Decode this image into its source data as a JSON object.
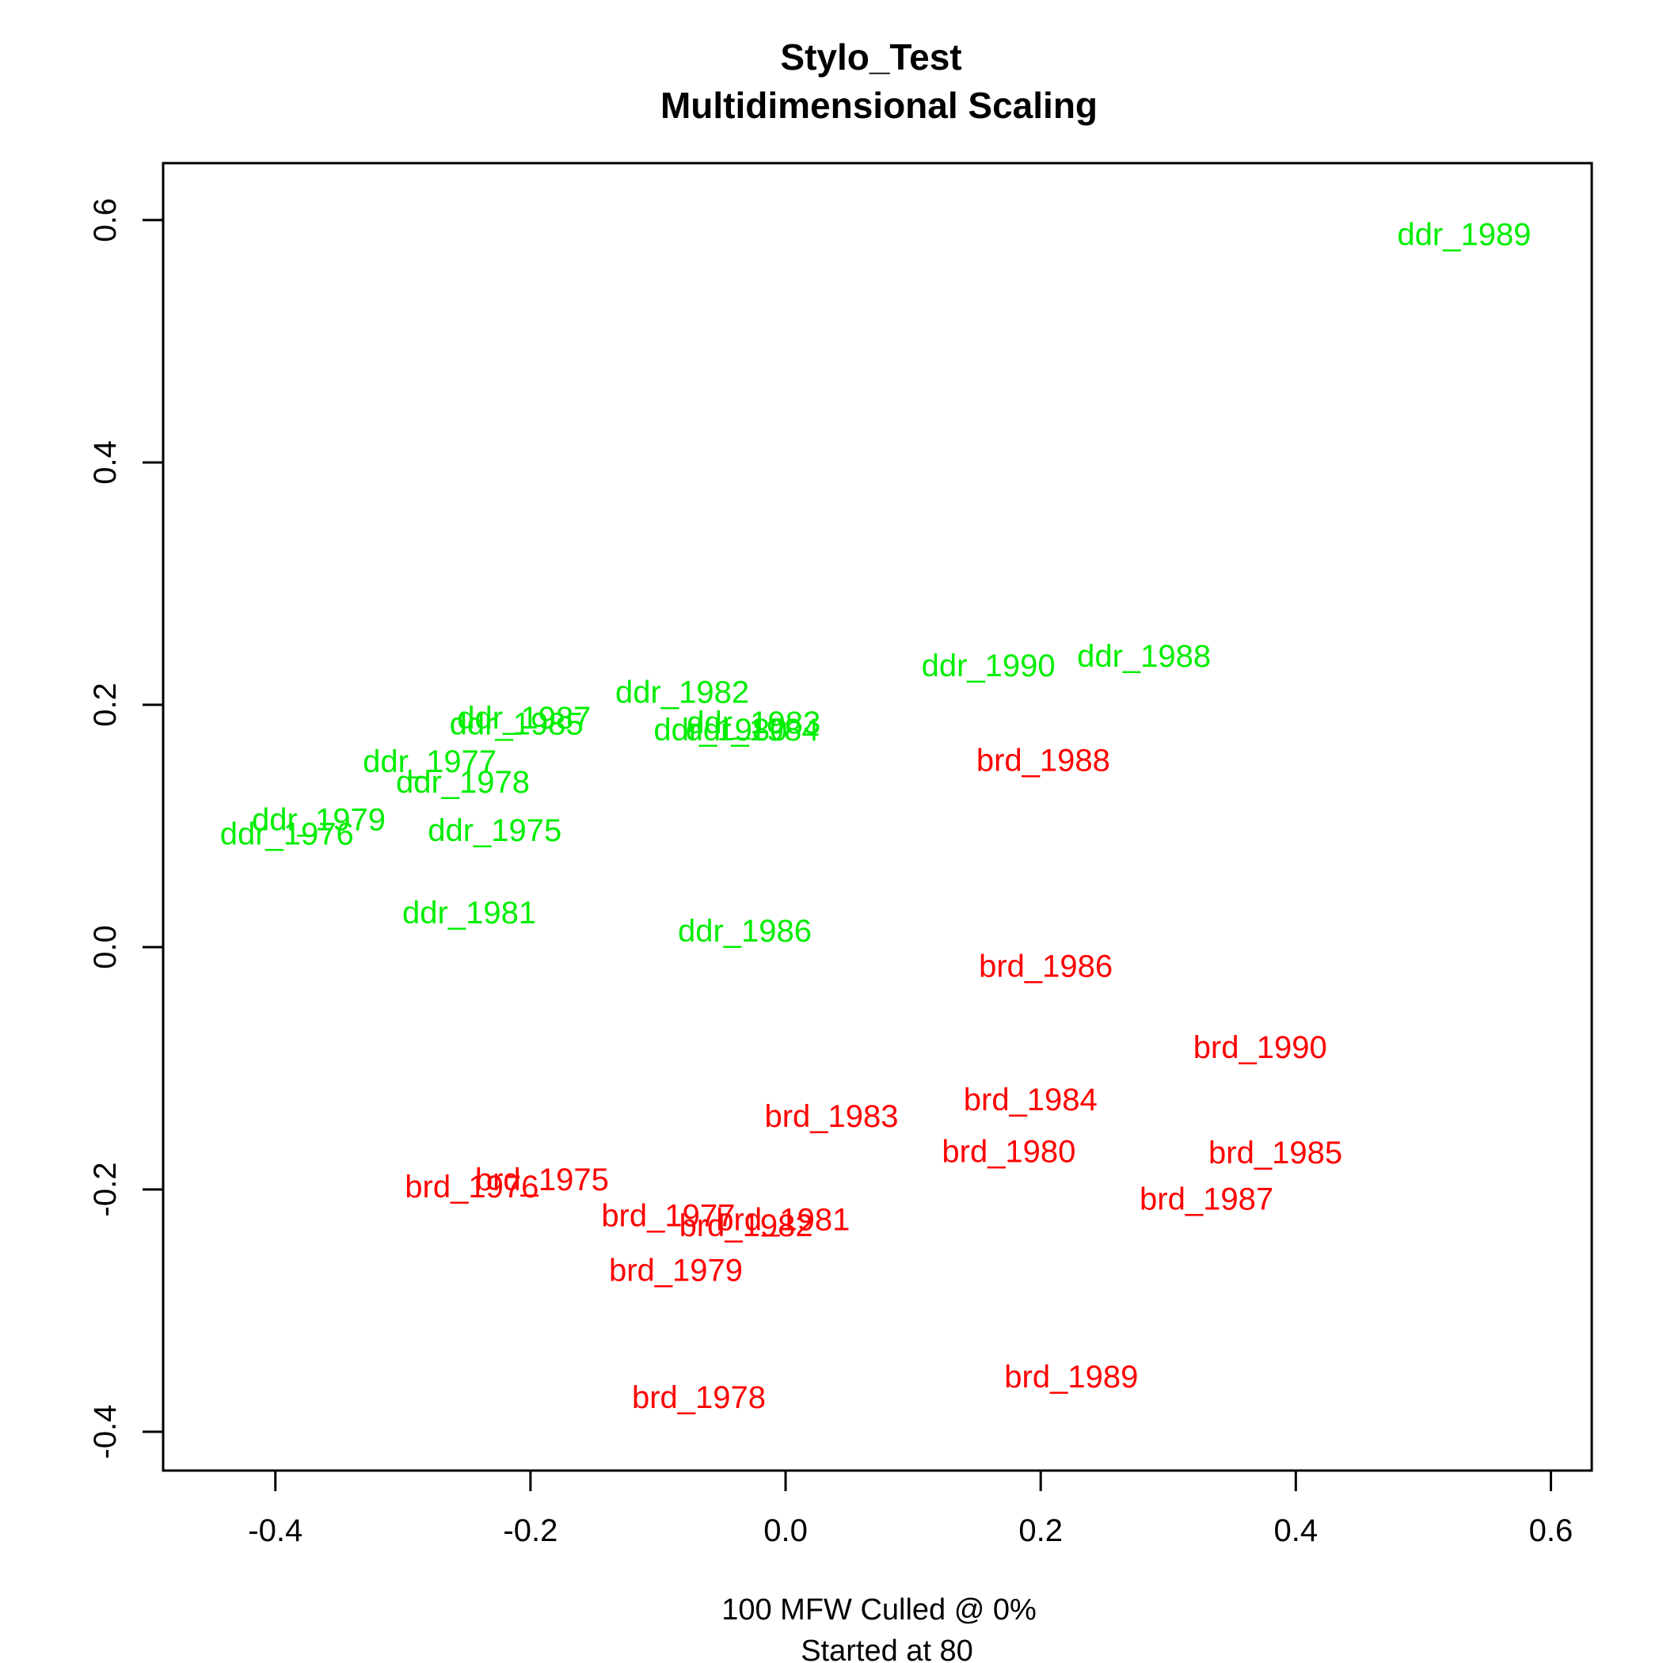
{
  "chart_data": {
    "type": "scatter",
    "title": "Stylo_Test",
    "subtitle": "Multidimensional Scaling",
    "xlabel_lines": [
      "100 MFW  Culled @ 0%",
      "Started at 80"
    ],
    "ylabel": "",
    "xlim": [
      -0.488,
      0.632
    ],
    "ylim": [
      -0.432,
      0.647
    ],
    "xticks": [
      -0.4,
      -0.2,
      0.0,
      0.2,
      0.4,
      0.6
    ],
    "xtick_labels": [
      "-0.4",
      "-0.2",
      "0.0",
      "0.2",
      "0.4",
      "0.6"
    ],
    "yticks": [
      -0.4,
      -0.2,
      0.0,
      0.2,
      0.4,
      0.6
    ],
    "ytick_labels": [
      "-0.4",
      "-0.2",
      "0.0",
      "0.2",
      "0.4",
      "0.6"
    ],
    "grid": false,
    "series": [
      {
        "color": "#00ee00",
        "points": [
          {
            "label": "ddr_1989",
            "x": 0.532,
            "y": 0.588
          },
          {
            "label": "ddr_1990",
            "x": 0.159,
            "y": 0.232
          },
          {
            "label": "ddr_1988",
            "x": 0.281,
            "y": 0.24
          },
          {
            "label": "ddr_1982",
            "x": -0.081,
            "y": 0.21
          },
          {
            "label": "ddr_1987",
            "x": -0.205,
            "y": 0.189
          },
          {
            "label": "ddr_1985",
            "x": -0.211,
            "y": 0.184
          },
          {
            "label": "ddr_1983",
            "x": -0.025,
            "y": 0.185
          },
          {
            "label": "ddr_1980",
            "x": -0.051,
            "y": 0.179
          },
          {
            "label": "ddr_1984",
            "x": -0.026,
            "y": 0.179
          },
          {
            "label": "ddr_1977",
            "x": -0.279,
            "y": 0.153
          },
          {
            "label": "ddr_1978",
            "x": -0.253,
            "y": 0.136
          },
          {
            "label": "ddr_1979",
            "x": -0.366,
            "y": 0.105
          },
          {
            "label": "ddr_1976",
            "x": -0.391,
            "y": 0.093
          },
          {
            "label": "ddr_1975",
            "x": -0.228,
            "y": 0.096
          },
          {
            "label": "ddr_1981",
            "x": -0.248,
            "y": 0.028
          },
          {
            "label": "ddr_1986",
            "x": -0.032,
            "y": 0.013
          }
        ]
      },
      {
        "color": "#ff0000",
        "points": [
          {
            "label": "brd_1988",
            "x": 0.202,
            "y": 0.154
          },
          {
            "label": "brd_1986",
            "x": 0.204,
            "y": -0.016
          },
          {
            "label": "brd_1990",
            "x": 0.372,
            "y": -0.083
          },
          {
            "label": "brd_1984",
            "x": 0.192,
            "y": -0.126
          },
          {
            "label": "brd_1983",
            "x": 0.036,
            "y": -0.14
          },
          {
            "label": "brd_1980",
            "x": 0.175,
            "y": -0.169
          },
          {
            "label": "brd_1985",
            "x": 0.384,
            "y": -0.17
          },
          {
            "label": "brd_1987",
            "x": 0.33,
            "y": -0.208
          },
          {
            "label": "brd_1975",
            "x": -0.191,
            "y": -0.192
          },
          {
            "label": "brd_1976",
            "x": -0.246,
            "y": -0.198
          },
          {
            "label": "brd_1977",
            "x": -0.092,
            "y": -0.222
          },
          {
            "label": "brd_1981",
            "x": -0.002,
            "y": -0.225
          },
          {
            "label": "brd_1982",
            "x": -0.031,
            "y": -0.23
          },
          {
            "label": "brd_1979",
            "x": -0.086,
            "y": -0.267
          },
          {
            "label": "brd_1989",
            "x": 0.224,
            "y": -0.355
          },
          {
            "label": "brd_1978",
            "x": -0.068,
            "y": -0.372
          }
        ]
      }
    ]
  }
}
